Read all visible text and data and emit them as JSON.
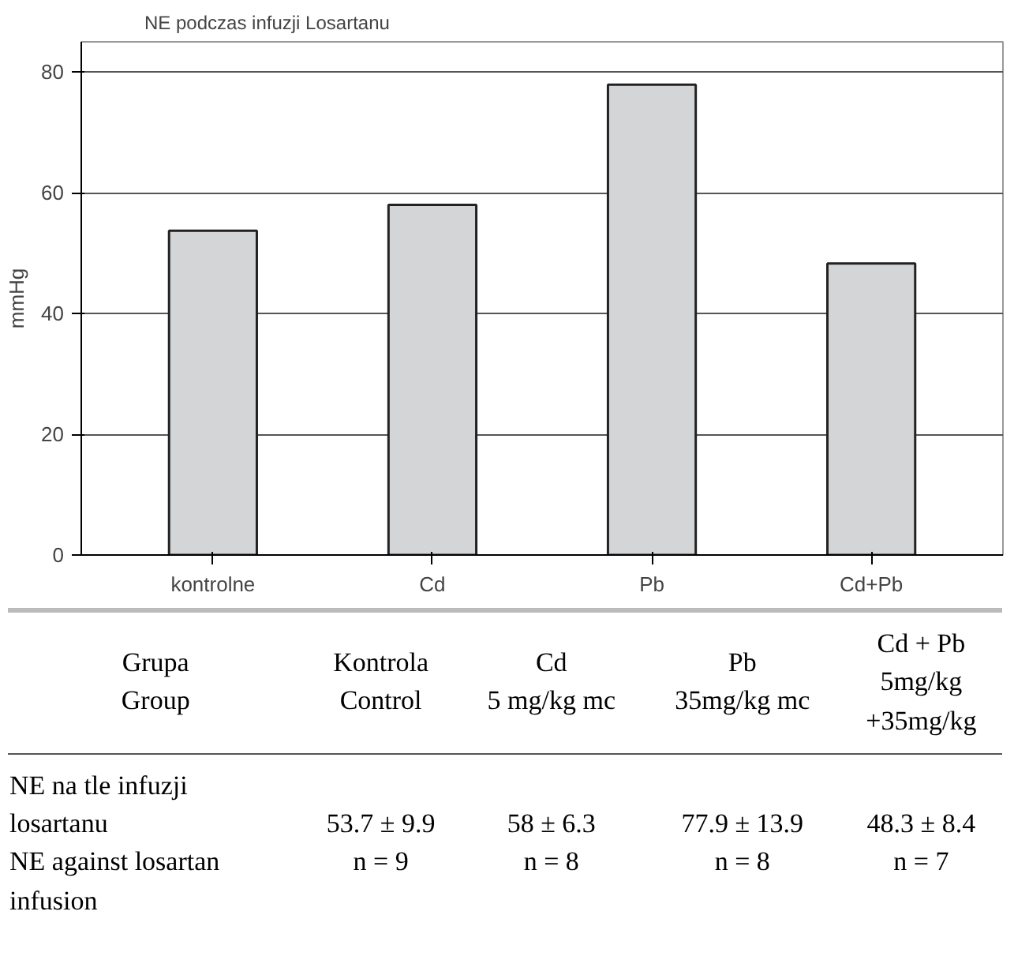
{
  "chart_data": {
    "type": "bar",
    "title": "NE podczas infuzji Losartanu",
    "ylabel": "mmHg",
    "categories": [
      "kontrolne",
      "Cd",
      "Pb",
      "Cd+Pb"
    ],
    "values": [
      53.7,
      58,
      77.9,
      48.3
    ],
    "color": "#d4d5d7",
    "ylim": [
      0,
      85
    ],
    "yticks": [
      0,
      20,
      40,
      60,
      80
    ],
    "grid": "y",
    "annotations": [
      "Grupa\nGroup",
      "Kontrola\nControl",
      "Cd\n5 mg/kg mc",
      "Pb\n35mg/kg mc",
      "Cd + Pb\n5mg/kg\n+35mg/kg",
      "NE na tle infuzji\nlosartanu\nNE against losartan\ninfusion",
      "53.7 ± 9.9\nn = 9",
      "58 ± 6.3\nn = 8",
      "77.9 ± 13.9\nn = 8",
      "48.3 ± 8.4\nn = 7"
    ]
  }
}
